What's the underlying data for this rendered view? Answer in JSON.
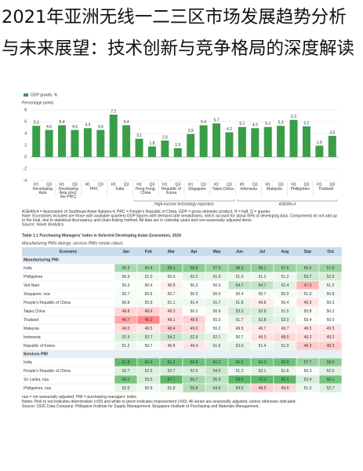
{
  "header": {
    "title": "2021年亚洲无线一二三区市场发展趋势分析与未来展望：技术创新与竞争格局的深度解读"
  },
  "chart_data": {
    "type": "bar",
    "y_label": "Percentage points",
    "categories": [
      "H1",
      "Q3",
      "H1",
      "Q3",
      "H1",
      "Q3",
      "H1",
      "Q3",
      "H1",
      "Q3",
      "H1",
      "Q3",
      "H1",
      "Q3",
      "H1",
      "Q3",
      "H1",
      "Q3",
      "H1",
      "Q3",
      "H1",
      "Q3",
      "H1",
      "Q3"
    ],
    "groups": [
      "Developing Asia",
      "Developing Asia (excl. the PRC)",
      "PRC",
      "India",
      "Hong Kong, China",
      "Republic of Korea",
      "Singapore",
      "Taipei,China",
      "Indonesia",
      "Malaysia",
      "Philippines",
      "Thailand"
    ],
    "series": [
      {
        "name": "GDP growth, %",
        "color": "#3a9e48",
        "values": [
          5.3,
          4.6,
          5.4,
          4.6,
          4.9,
          4.6,
          7.2,
          5.4,
          3.1,
          1.8,
          2.8,
          1.5,
          3.9,
          5.4,
          5.7,
          4.2,
          5.1,
          4.9,
          5.1,
          5.3,
          6.3,
          5.2,
          1.9,
          3.6
        ]
      }
    ],
    "ylim": [
      -4,
      8
    ],
    "yticks": [
      -4,
      -2,
      0,
      2,
      4,
      6,
      8
    ],
    "grid": true,
    "brackets": [
      "High-income technology exporters",
      "ASEAN-4"
    ],
    "notes": [
      "ASEAN-4 = Association of Southeast Asian Nations-4, PRC = People's Republic of China, GDP = gross domestic product, H = half, Q = quarter.",
      "Note: Economies included are those with available quarterly GDP figures with demand-side breakdowns, which account for about 90% of developing Asia. Components do not add up to the total, due to statistical discrepancy and chain-linking method. All data are in calendar years and non-seasonally adjusted items.",
      "Source: Haver Analytics."
    ]
  },
  "table": {
    "title": "Table 1.1 Purchasing Managers' Index in Selected Developing Asian Economies, 2024",
    "subtitle": "Manufacturing PMIs diverge, services PMIs remain robust.",
    "columns": [
      "Economy",
      "Jan",
      "Feb",
      "Mar",
      "Apr",
      "May",
      "Jun",
      "Jul",
      "Aug",
      "Sep",
      "Oct"
    ],
    "sections": [
      {
        "name": "Manufacturing PMI",
        "rows": [
          [
            "India",
            "56.5",
            "56.9",
            "59.1",
            "58.8",
            "57.5",
            "58.3",
            "58.1",
            "57.5",
            "56.5",
            "57.5"
          ],
          [
            "Philippines",
            "50.9",
            "51.0",
            "50.9",
            "52.2",
            "51.9",
            "51.3",
            "51.2",
            "51.2",
            "53.7",
            "52.9"
          ],
          [
            "Viet Nam",
            "50.3",
            "50.4",
            "49.9",
            "50.3",
            "50.3",
            "54.7",
            "54.7",
            "52.4",
            "47.3",
            "51.2"
          ],
          [
            "Singapore, nsa",
            "50.7",
            "50.6",
            "50.7",
            "50.5",
            "50.6",
            "50.4",
            "50.7",
            "50.9",
            "51.0",
            "50.8"
          ],
          [
            "People's Republic of China",
            "50.8",
            "50.9",
            "51.1",
            "51.4",
            "51.7",
            "51.8",
            "49.8",
            "50.4",
            "49.3",
            "50.3"
          ],
          [
            "Taipei,China",
            "48.8",
            "48.6",
            "49.3",
            "50.2",
            "50.9",
            "53.2",
            "52.9",
            "51.5",
            "50.8",
            "50.2"
          ],
          [
            "Thailand",
            "46.7",
            "45.3",
            "49.1",
            "48.6",
            "50.3",
            "51.7",
            "52.8",
            "52.0",
            "50.4",
            "50.0"
          ],
          [
            "Malaysia",
            "49.0",
            "49.5",
            "48.4",
            "49.0",
            "50.2",
            "49.9",
            "49.7",
            "49.7",
            "49.5",
            "49.5"
          ],
          [
            "Indonesia",
            "52.9",
            "52.7",
            "54.2",
            "52.9",
            "52.1",
            "50.7",
            "49.3",
            "48.9",
            "49.2",
            "49.2"
          ],
          [
            "Republic of Korea",
            "51.2",
            "50.7",
            "49.8",
            "49.4",
            "51.6",
            "52.0",
            "51.4",
            "51.9",
            "48.3",
            "48.3"
          ]
        ]
      },
      {
        "name": "Services PMI",
        "rows": [
          [
            "India",
            "61.8",
            "60.6",
            "61.2",
            "60.8",
            "60.2",
            "60.5",
            "60.3",
            "60.9",
            "57.7",
            "58.5"
          ],
          [
            "People's Republic of China",
            "52.7",
            "52.5",
            "52.7",
            "52.5",
            "54.0",
            "51.2",
            "52.1",
            "51.6",
            "50.3",
            "52.0"
          ],
          [
            "Sri Lanka, nsa",
            "60.1",
            "53.0",
            "67.7",
            "56.7",
            "55.0",
            "63.5",
            "73.1",
            "65.2",
            "53.4",
            "60.1"
          ],
          [
            "Philippines, nsa",
            "52.0",
            "50.9",
            "51.8",
            "55.8",
            "54.6",
            "54.0",
            "48.5",
            "49.0",
            "51.3",
            "52.7"
          ]
        ]
      }
    ],
    "notes": [
      "nsa = not seasonally adjusted, PMI = purchasing managers' index.",
      "Notes: Pink to red indicates deterioration (<50) and white to green indicates improvement (>50). All series are seasonally adjusted, unless otherwise indicated.",
      "Source: CEIC Data Company; Philippine Institute for Supply Management; Singapore Institute of Purchasing and Materials Management."
    ]
  }
}
